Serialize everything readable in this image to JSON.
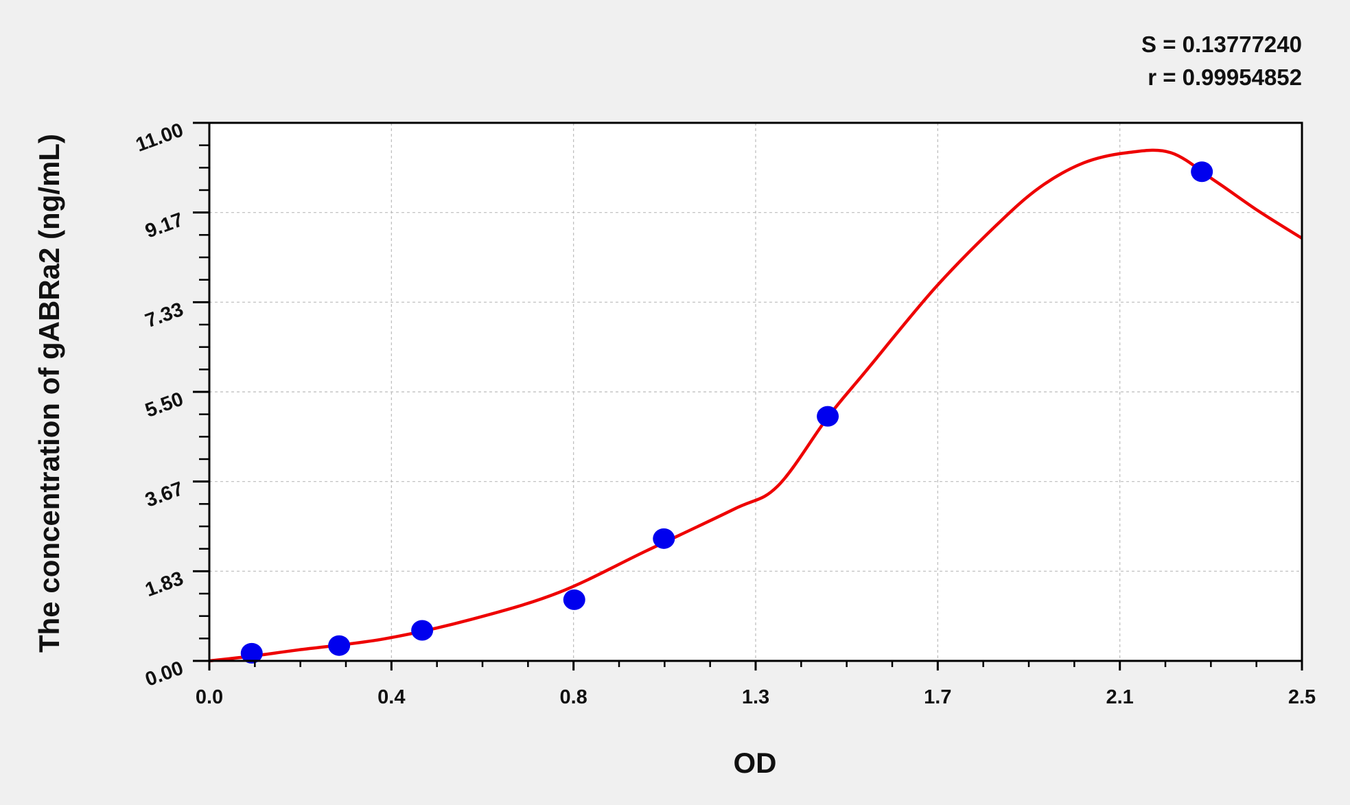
{
  "chart_data": {
    "type": "scatter",
    "title": "",
    "xlabel": "OD",
    "ylabel": "The concentration of gABRa2 (ng/mL)",
    "xlim": [
      0,
      2.5
    ],
    "ylim": [
      0,
      11
    ],
    "x_ticks": [
      "0.0",
      "0.4",
      "0.8",
      "1.3",
      "1.7",
      "2.1",
      "2.5"
    ],
    "y_ticks": [
      "0.00",
      "1.83",
      "3.67",
      "5.50",
      "7.33",
      "9.17",
      "11.00"
    ],
    "grid": true,
    "stats": {
      "s": "S = 0.13777240",
      "r": "r = 0.99954852"
    },
    "points": {
      "x": [
        0.097,
        0.297,
        0.487,
        0.835,
        1.04,
        1.415,
        2.271
      ],
      "y": [
        0.156,
        0.313,
        0.625,
        1.25,
        2.5,
        5.0,
        10.0
      ]
    },
    "fit_curve": {
      "x": [
        0,
        0.1,
        0.2,
        0.4,
        0.6,
        0.8,
        1.0,
        1.2,
        1.3,
        1.415,
        1.5,
        1.66,
        1.8,
        1.9,
        2.0,
        2.1,
        2.2,
        2.3,
        2.4,
        2.5
      ],
      "y": [
        0,
        0.1,
        0.22,
        0.45,
        0.85,
        1.4,
        2.25,
        3.1,
        3.57,
        4.98,
        5.9,
        7.62,
        8.9,
        9.68,
        10.18,
        10.39,
        10.39,
        9.82,
        9.2,
        8.64
      ]
    },
    "colors": {
      "points": "#0000ee",
      "curve": "#ee0000",
      "background": "#f0f0f0"
    }
  }
}
